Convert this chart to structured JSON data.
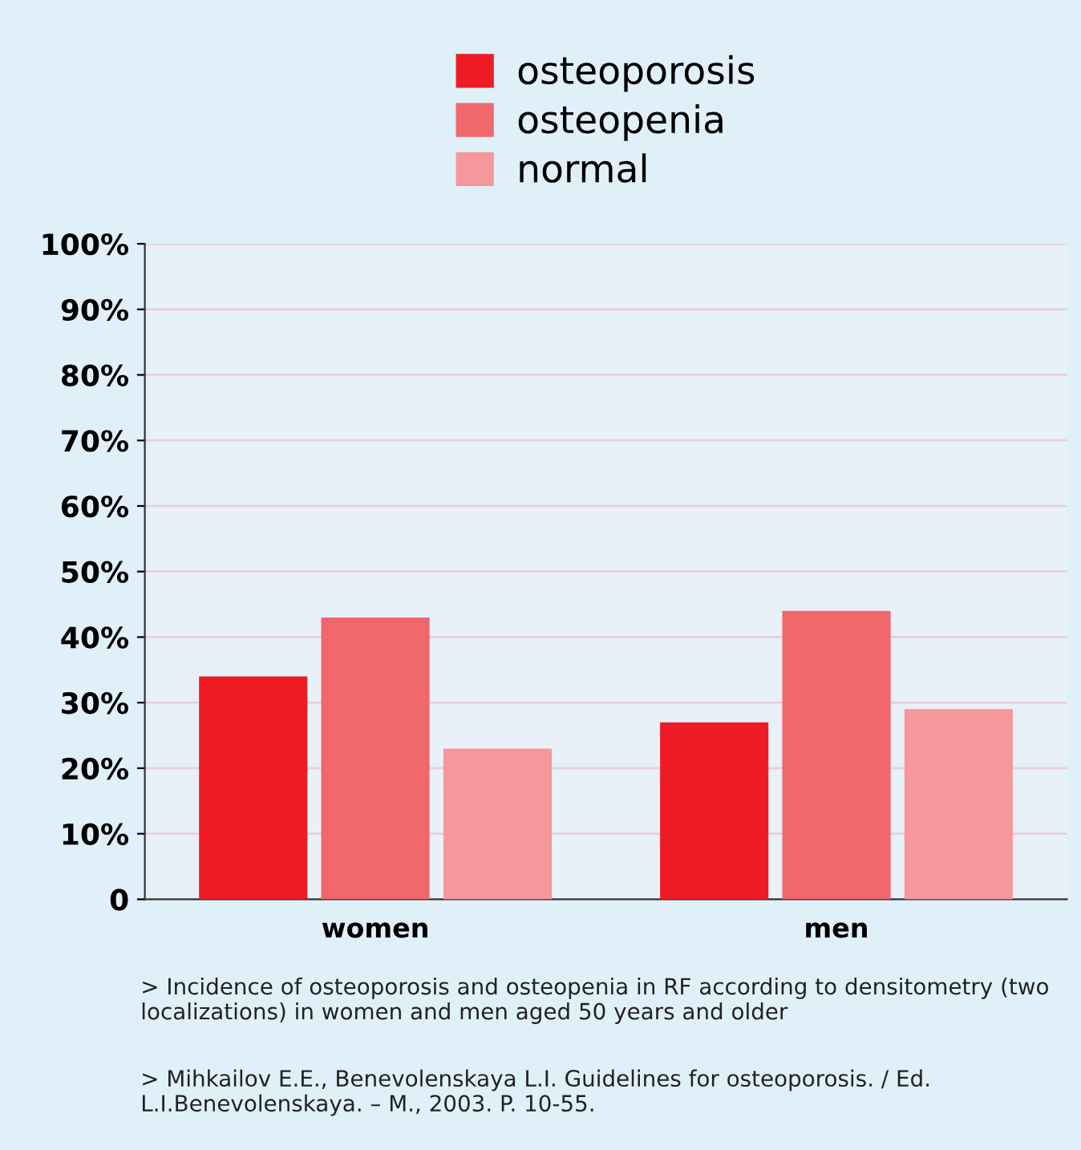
{
  "chart_data": {
    "type": "bar",
    "categories": [
      "women",
      "men"
    ],
    "series": [
      {
        "name": "osteoporosis",
        "color": "#ed1c24",
        "values": [
          34,
          27
        ]
      },
      {
        "name": "osteopenia",
        "color": "#f0676c",
        "values": [
          43,
          44
        ]
      },
      {
        "name": "normal",
        "color": "#f6979c",
        "values": [
          23,
          29
        ]
      }
    ],
    "ylim": [
      0,
      100
    ],
    "yticks": [
      {
        "value": 0,
        "label": "0"
      },
      {
        "value": 10,
        "label": "10%"
      },
      {
        "value": 20,
        "label": "20%"
      },
      {
        "value": 30,
        "label": "30%"
      },
      {
        "value": 40,
        "label": "40%"
      },
      {
        "value": 50,
        "label": "50%"
      },
      {
        "value": 60,
        "label": "60%"
      },
      {
        "value": 70,
        "label": "70%"
      },
      {
        "value": 80,
        "label": "80%"
      },
      {
        "value": 90,
        "label": "90%"
      },
      {
        "value": 100,
        "label": "100%"
      }
    ],
    "grid": "y",
    "legend": "top",
    "annotations": [
      "> Incidence of osteoporosis and osteopenia in RF according to densitometry (two localizations) in women and men aged 50 years and older",
      "> Mihkailov E.E., Benevolenskaya L.I. Guidelines for osteoporosis. / Ed. L.I.Benevolenskaya. – M., 2003. P. 10-55."
    ]
  }
}
